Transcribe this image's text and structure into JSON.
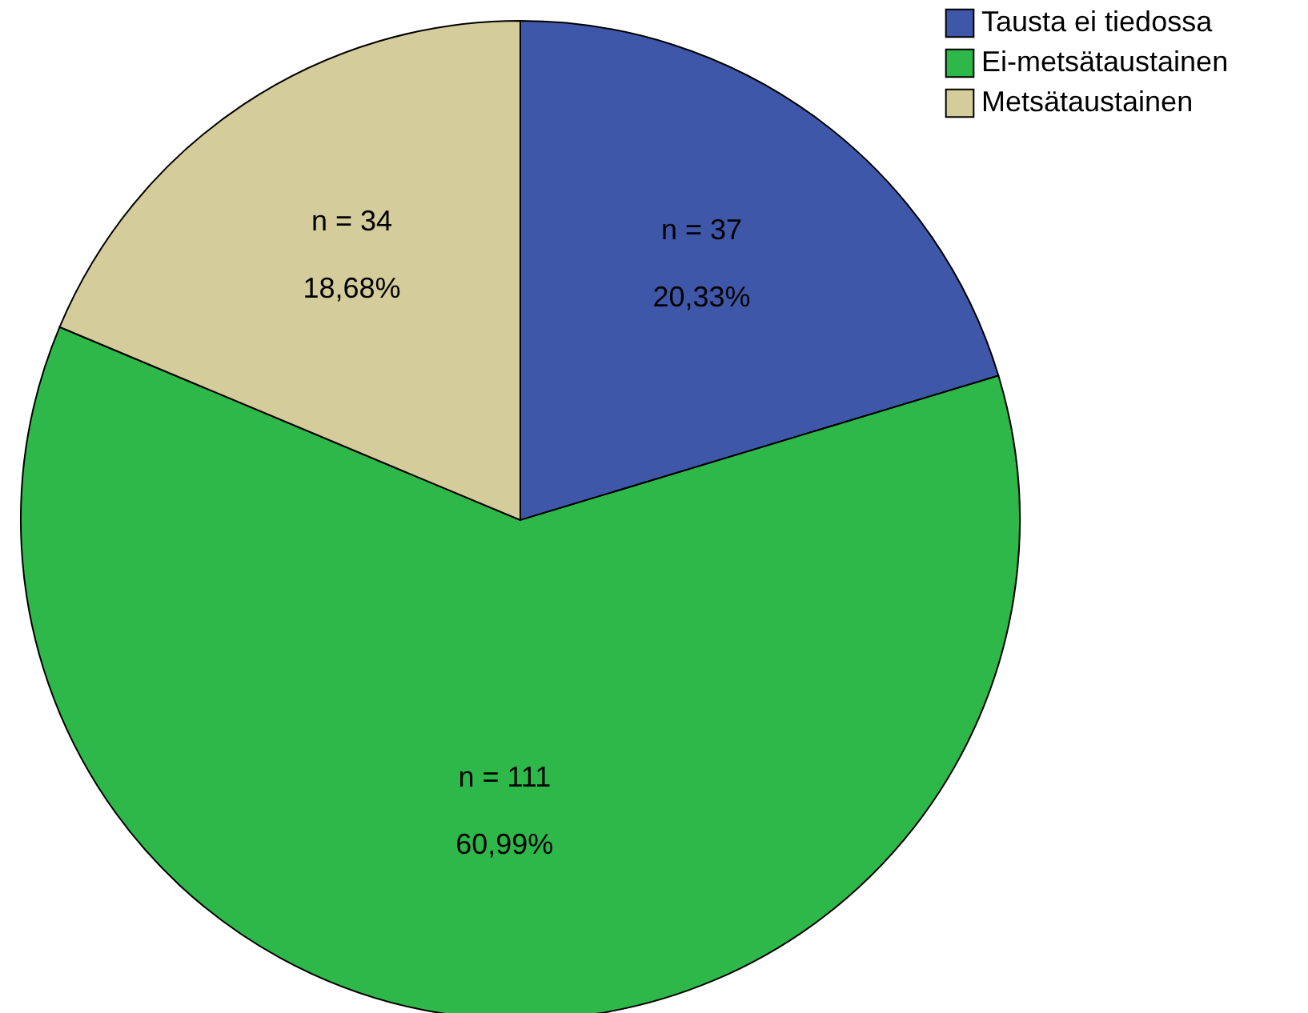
{
  "chart_data": {
    "type": "pie",
    "categories": [
      "Tausta ei tiedossa",
      "Ei-metsätaustainen",
      "Metsätaustainen"
    ],
    "values": [
      37,
      111,
      34
    ],
    "colors": [
      "#3f57a8",
      "#2eb84a",
      "#d4cc9a"
    ],
    "value_labels": [
      "n = 37",
      "n = 111",
      "n = 34"
    ],
    "annotations": [
      "20,33%",
      "60,99%",
      "18,68%"
    ],
    "legend": "top right"
  }
}
